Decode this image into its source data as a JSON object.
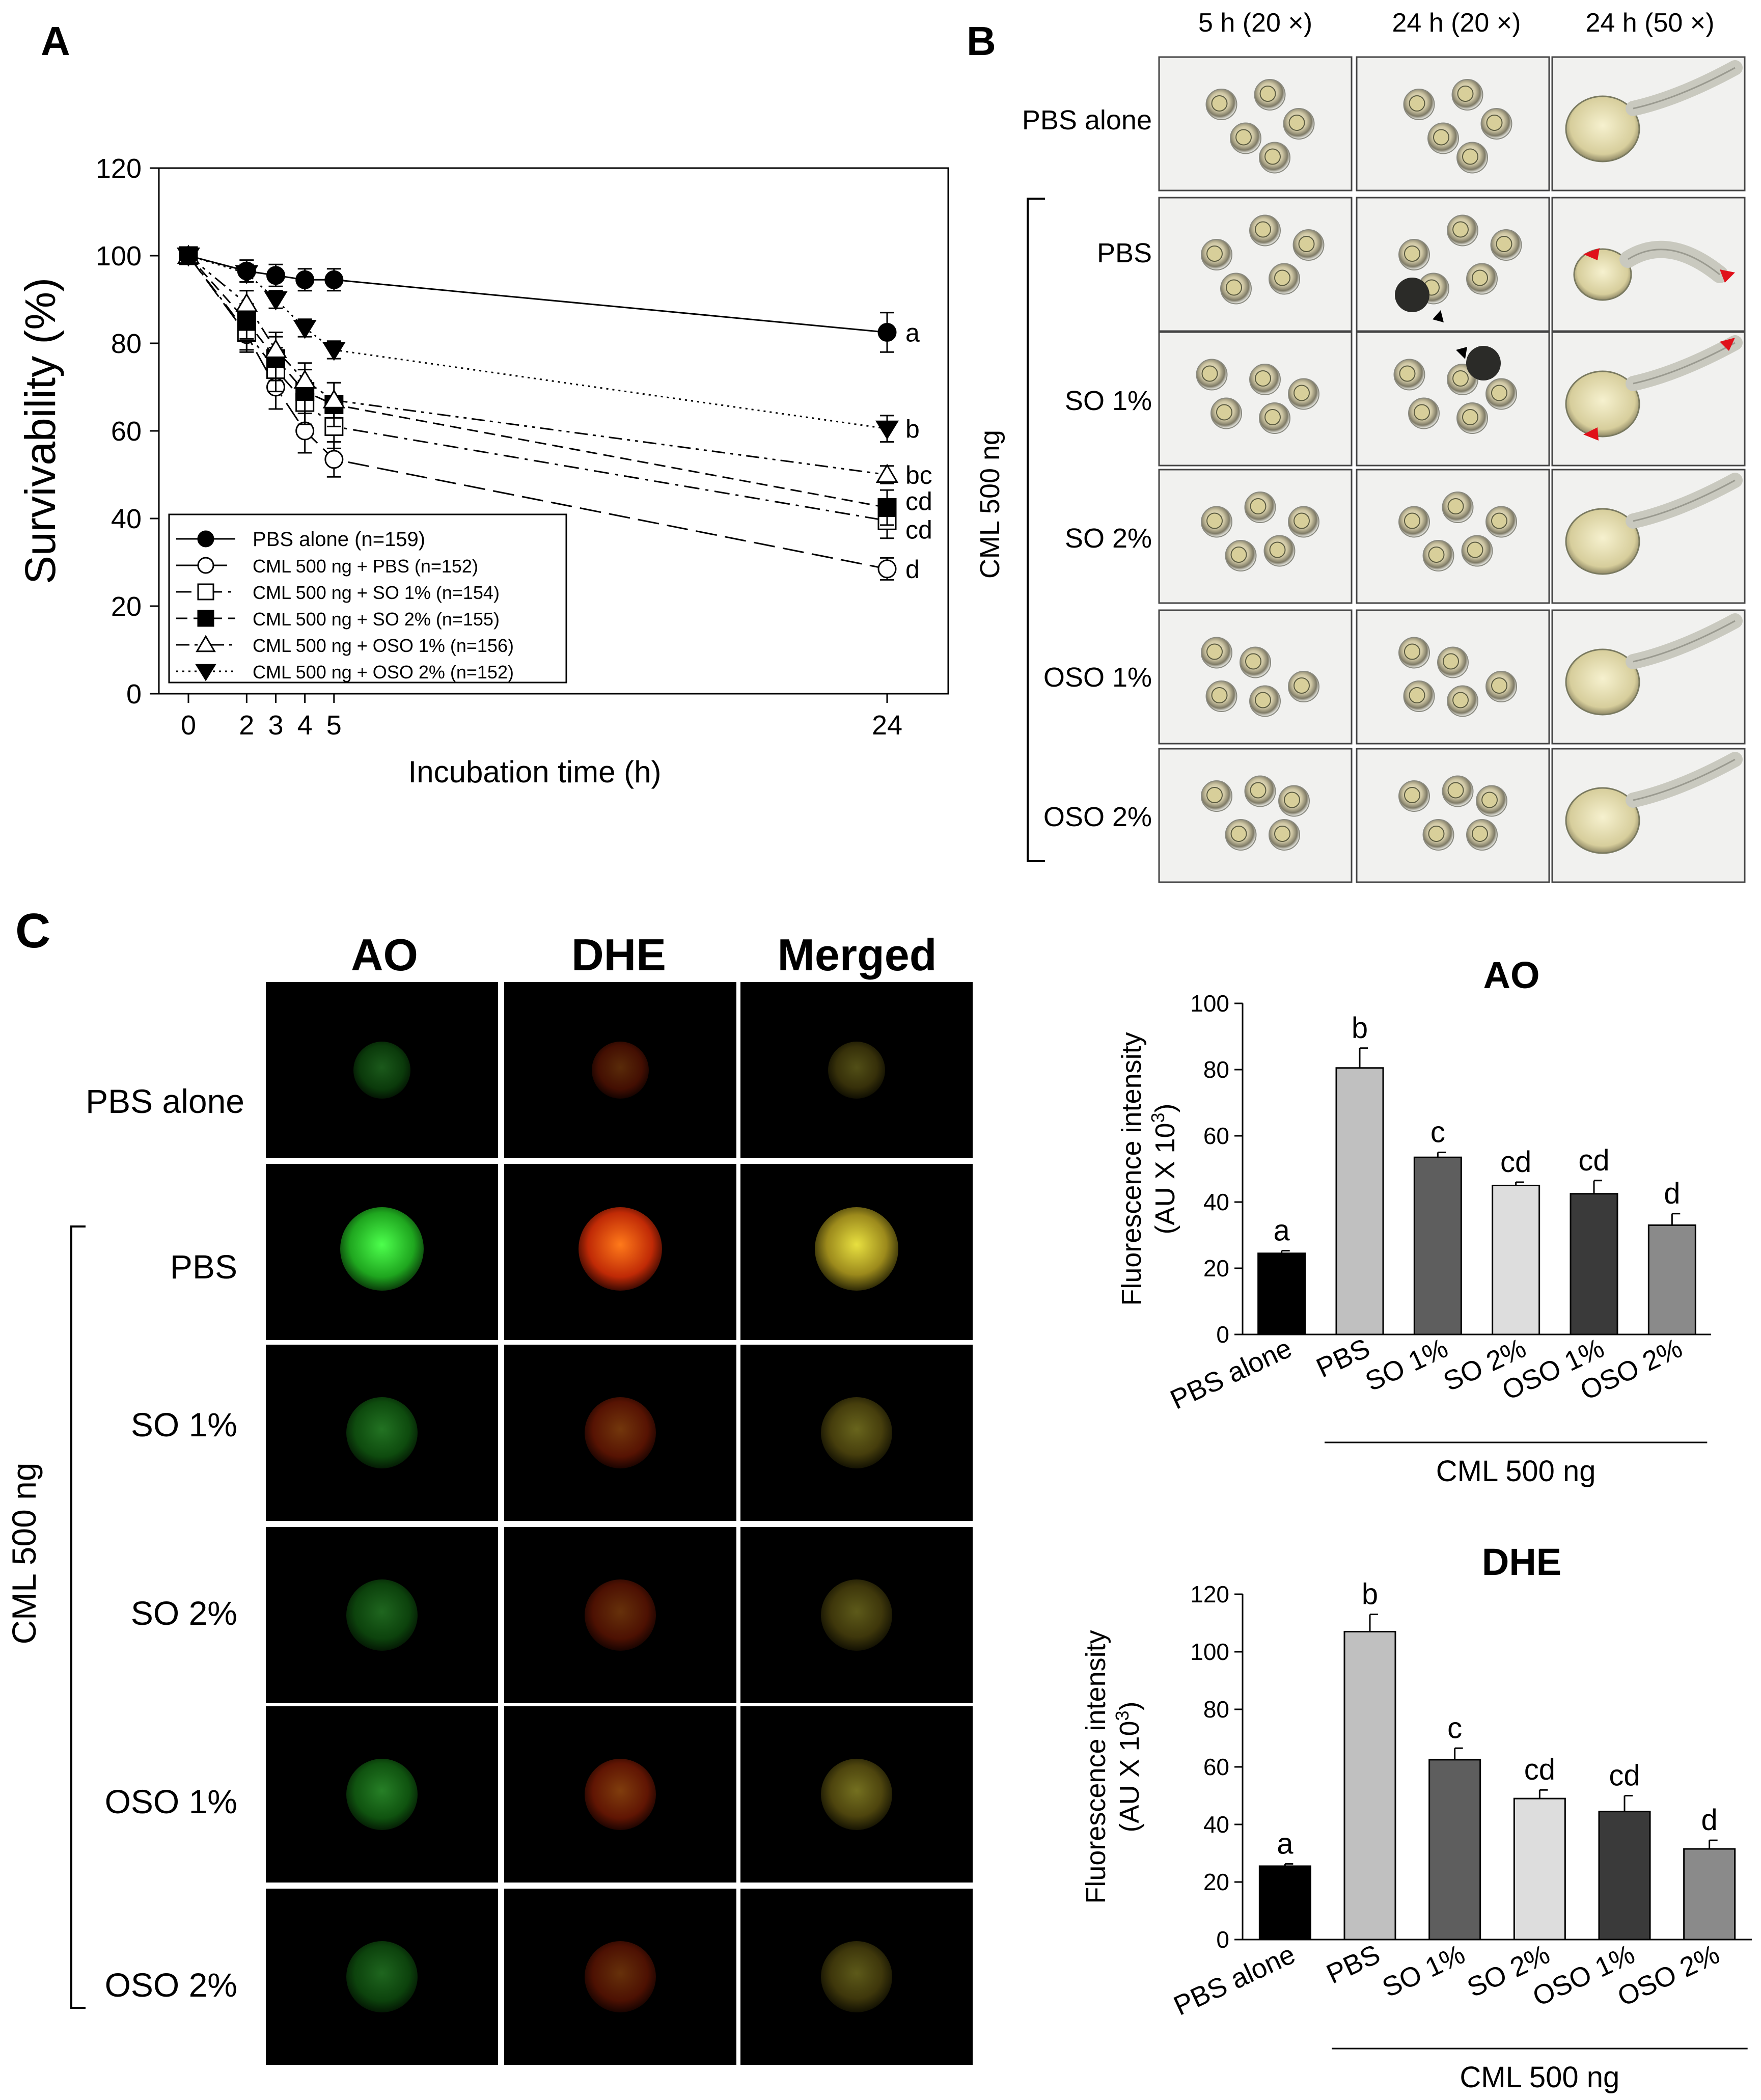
{
  "panels": {
    "a": "A",
    "b": "B",
    "c": "C"
  },
  "chart_data": [
    {
      "type": "line",
      "panel": "A",
      "xlabel": "Incubation time (h)",
      "ylabel": "Survivability (%)",
      "xlim": [
        0,
        24
      ],
      "ylim": [
        0,
        120
      ],
      "xticks": [
        "0",
        "2",
        "3",
        "4",
        "5",
        "24"
      ],
      "yticks": [
        "0",
        "20",
        "40",
        "60",
        "80",
        "100",
        "120"
      ],
      "legend_position": "bottom-left",
      "series": [
        {
          "name": "PBS alone (n=159)",
          "marker": "filled-circle",
          "line": "solid",
          "x": [
            0,
            2,
            3,
            4,
            5,
            24
          ],
          "y": [
            100,
            96.5,
            95.5,
            94.5,
            94.5,
            82.5
          ],
          "err": [
            0,
            2.5,
            2.5,
            2.5,
            2.5,
            4.5
          ],
          "letter": "a"
        },
        {
          "name": "CML 500 ng + PBS (n=152)",
          "marker": "open-circle",
          "line": "long-dash",
          "x": [
            0,
            2,
            3,
            4,
            5,
            24
          ],
          "y": [
            100,
            82,
            70,
            60,
            53.5,
            28.5
          ],
          "err": [
            0,
            4,
            5,
            5,
            4,
            2.5
          ],
          "letter": "d"
        },
        {
          "name": "CML 500 ng + SO 1% (n=154)",
          "marker": "open-square",
          "line": "dash-dot",
          "x": [
            0,
            2,
            3,
            4,
            5,
            24
          ],
          "y": [
            100,
            82.5,
            74,
            66.5,
            61,
            39.5
          ],
          "err": [
            0,
            4,
            5,
            5,
            5,
            4
          ],
          "letter": "cd"
        },
        {
          "name": "CML 500 ng + SO 2% (n=155)",
          "marker": "filled-square",
          "line": "dashed",
          "x": [
            0,
            2,
            3,
            4,
            5,
            24
          ],
          "y": [
            100,
            85,
            76.5,
            69,
            66,
            42.5
          ],
          "err": [
            0,
            4,
            5,
            5,
            5,
            4
          ],
          "letter": "cd"
        },
        {
          "name": "CML 500 ng + OSO 1% (n=156)",
          "marker": "open-triangle",
          "line": "dash-dot-dot",
          "x": [
            0,
            2,
            3,
            4,
            5,
            24
          ],
          "y": [
            100,
            89,
            78.5,
            71.5,
            67,
            50
          ],
          "err": [
            0,
            3,
            4,
            4,
            4,
            2
          ],
          "letter": "bc"
        },
        {
          "name": "CML 500 ng + OSO 2% (n=152)",
          "marker": "filled-triangle-down",
          "line": "dotted",
          "x": [
            0,
            2,
            3,
            4,
            5,
            24
          ],
          "y": [
            100,
            96,
            90,
            83.5,
            78.5,
            60.5
          ],
          "err": [
            0,
            2,
            2,
            2,
            2,
            3
          ],
          "letter": "b"
        }
      ]
    },
    {
      "type": "bar",
      "panel": "C-AO",
      "title": "AO",
      "ylabel_line1": "Fluorescence intensity",
      "ylabel_line2": "(AU X 10",
      "ylabel_sup": "3",
      "ylabel_close": ")",
      "ylim": [
        0,
        100
      ],
      "yticks": [
        "0",
        "20",
        "40",
        "60",
        "80",
        "100"
      ],
      "categories": [
        "PBS alone",
        "PBS",
        "SO 1%",
        "SO 2%",
        "OSO 1%",
        "OSO 2%"
      ],
      "values": [
        24.5,
        80.5,
        53.5,
        45,
        42.5,
        33
      ],
      "errors": [
        0.8,
        6,
        1.5,
        1,
        4,
        3.5
      ],
      "letters": [
        "a",
        "b",
        "c",
        "cd",
        "cd",
        "d"
      ],
      "bar_colors": [
        "#000000",
        "#c0c0c0",
        "#5e5e5e",
        "#dddddd",
        "#3a3a3a",
        "#8a8a8a"
      ],
      "group_label": "CML 500 ng"
    },
    {
      "type": "bar",
      "panel": "C-DHE",
      "title": "DHE",
      "ylabel_line1": "Fluorescence intensity",
      "ylabel_line2": "(AU X 10",
      "ylabel_sup": "3",
      "ylabel_close": ")",
      "ylim": [
        0,
        120
      ],
      "yticks": [
        "0",
        "20",
        "40",
        "60",
        "80",
        "100",
        "120"
      ],
      "categories": [
        "PBS alone",
        "PBS",
        "SO 1%",
        "SO 2%",
        "OSO 1%",
        "OSO 2%"
      ],
      "values": [
        25.5,
        107,
        62.5,
        49,
        44.5,
        31.5
      ],
      "errors": [
        0.8,
        6,
        4,
        3,
        5.5,
        3
      ],
      "letters": [
        "a",
        "b",
        "c",
        "cd",
        "cd",
        "d"
      ],
      "bar_colors": [
        "#000000",
        "#c0c0c0",
        "#5e5e5e",
        "#dddddd",
        "#3a3a3a",
        "#8a8a8a"
      ],
      "group_label": "CML 500 ng"
    }
  ],
  "panelB": {
    "columns": [
      "5 h (20 ×)",
      "24 h (20 ×)",
      "24 h (50 ×)"
    ],
    "rows": [
      "PBS alone",
      "PBS",
      "SO 1%",
      "SO 2%",
      "OSO 1%",
      "OSO 2%"
    ],
    "group_label": "CML 500 ng"
  },
  "panelC": {
    "columns": [
      "AO",
      "DHE",
      "Merged"
    ],
    "rows": [
      "PBS alone",
      "PBS",
      "SO 1%",
      "SO 2%",
      "OSO 1%",
      "OSO 2%"
    ],
    "group_label": "CML 500 ng",
    "intensity": [
      0.35,
      1.0,
      0.45,
      0.4,
      0.5,
      0.4
    ]
  }
}
